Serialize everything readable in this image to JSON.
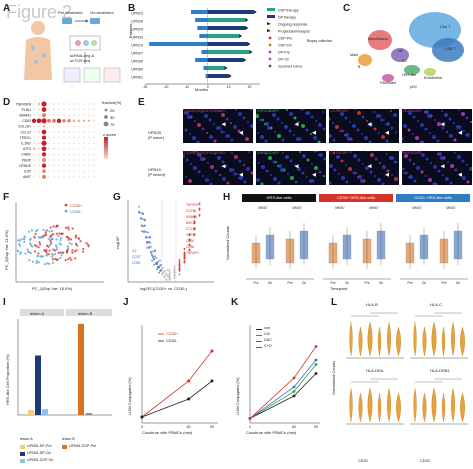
{
  "figure_title": "Figure 2",
  "panel_letters": [
    "A",
    "B",
    "C",
    "D",
    "E",
    "F",
    "G",
    "H",
    "I",
    "J",
    "K",
    "L"
  ],
  "panelA": {
    "pre": "Pre-treatment",
    "on": "On-treatment",
    "method1": "scRNA-seq &",
    "method2": "scTCR-seq"
  },
  "panelB": {
    "ylabel": "Patients",
    "xlabel": "Months",
    "x_ticks": [
      "-30",
      "-20",
      "-10",
      "0",
      "10",
      "20"
    ],
    "patients": [
      "UPN23",
      "UPN28",
      "UPN29",
      "UPN33",
      "UPN19",
      "UPN27",
      "UPN35",
      "UPN50",
      "UPN51"
    ],
    "legend": [
      "CDP therapy",
      "DP therapy",
      "Ongoing response",
      "Progression/relapse",
      "CDP-Pre",
      "CDP-On",
      "DP-Pre",
      "DP-On",
      "recurrent tumor"
    ],
    "legend_extra": [
      "Biopsy collection"
    ]
  },
  "panelC": {
    "labels": [
      "CD4 T",
      "CD8 T",
      "Mono/Macro",
      "NK",
      "B",
      "HRS-like",
      "Fibroblast",
      "Endothelial",
      "Mast",
      "DC",
      "pDC"
    ]
  },
  "panelD": {
    "genes": [
      "TNFRSF8",
      "PLIN1",
      "MSM41",
      "CD63",
      "COL1A1",
      "CCL22",
      "TPRG1",
      "IL1RD",
      "ATF3",
      "CHRD",
      "PERP",
      "CRNDE",
      "IL2R",
      "AMIT"
    ],
    "legend_title": "fraction(%)",
    "legend_vals": [
      "25",
      "50",
      "75"
    ],
    "color_title": "z-score"
  },
  "panelE": {
    "rows": [
      "UPN33",
      "UPN19"
    ],
    "row_sub": [
      "(P naive)",
      "(P mixed)"
    ],
    "stain_headers": [
      "CD30/DHRS2/PAX5/DAPI",
      "DHRS2/DAPI",
      "CD30/DAPI",
      "PAX5/DAPI"
    ]
  },
  "panelF": {
    "xlabel": "PC_1(Exp Var: 18.0%)",
    "ylabel": "PC_2(Exp Var: 11.6%)",
    "legend": [
      "CD30+",
      "CD30-"
    ]
  },
  "panelG": {
    "xlabel": "log2FC(CD30+ vs. CD30-)",
    "ylabel": "-log10P",
    "up_genes": [
      "TNFRSF8",
      "CD274",
      "MSM4A",
      "BIRC3",
      "CCL22",
      "IL1RD",
      "CD80",
      "CD86",
      "TNFAIP3"
    ],
    "down_genes": [
      "IL2",
      "CCR7",
      "CD69"
    ]
  },
  "panelH": {
    "ylabel": "Normalized Counts",
    "xlabel": "Timepoint",
    "groups": [
      "HRS-like cells",
      "CD30+ HRS-like cells",
      "CD30- HRS-like cells"
    ],
    "genes": [
      "MKI67",
      "MKI67",
      "MKI67"
    ],
    "x_ticks": [
      "Pre",
      "On"
    ]
  },
  "panelI": {
    "ylabel": "HRS-like Cell Proportion (%)",
    "lesions": [
      "lesion A",
      "lesion B"
    ],
    "legend": [
      "UPN51-DP-Pre",
      "UPN51-CDP-Pre",
      "UPN51-DP-On",
      "UPN51-CDP-On"
    ]
  },
  "panelJ": {
    "ylabel": "LI3M Conjugates (%)",
    "xlabel": "Coculture with PBMCs (min)",
    "legend": [
      "CD30+",
      "CD30-"
    ],
    "x_ticks": [
      "0",
      "60",
      "90"
    ]
  },
  "panelK": {
    "ylabel": "LI3M Conjugates (%)",
    "xlabel": "Coculture with PBMCs (min)",
    "legend": [
      "con",
      "Chi",
      "DAC",
      "C+D"
    ],
    "x_ticks": [
      "0",
      "60",
      "90"
    ]
  },
  "panelL": {
    "ylabel": "Normalized Counts",
    "genes": [
      "HLA-B",
      "HLA-C",
      "HLA-DRA",
      "HLA-DRB1"
    ],
    "groups": [
      "CD30",
      "CD30"
    ]
  },
  "colors": {
    "red": "#d6342a",
    "blue": "#2d7ec4",
    "green": "#2aa37a",
    "orange": "#d9731d",
    "navy": "#1f3a78",
    "gold": "#f2a12b"
  }
}
